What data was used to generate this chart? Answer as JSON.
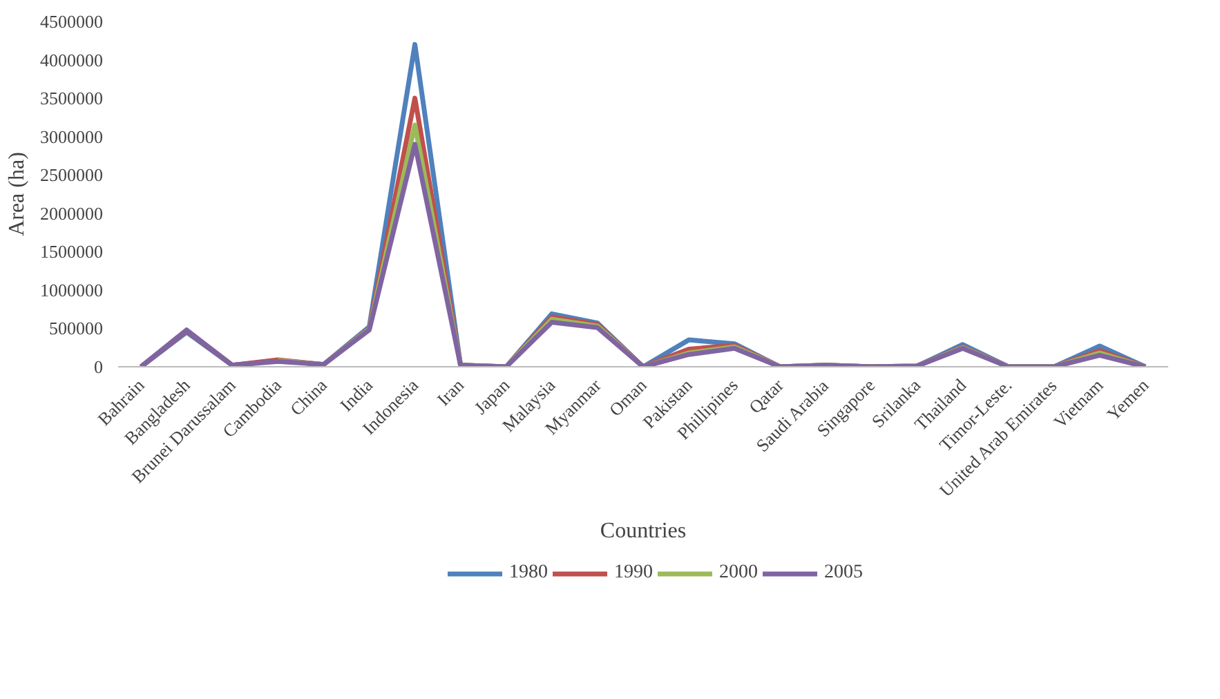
{
  "chart_data": {
    "type": "line",
    "xlabel": "Countries",
    "ylabel": "Area (ha)",
    "categories": [
      "Bahrain",
      "Bangladesh",
      "Brunei Darussalam",
      "Cambodia",
      "China",
      "India",
      "Indonesia",
      "Iran",
      "Japan",
      "Malaysia",
      "Myanmar",
      "Oman",
      "Pakistan",
      "Phillipines",
      "Qatar",
      "Saudi Arabia",
      "Singapore",
      "Srilanka",
      "Thailand",
      "Timor-Leste.",
      "United Arab Emirates",
      "Vietnam",
      "Yemen"
    ],
    "series": [
      {
        "name": "1980",
        "color": "#4f81bd",
        "values": [
          0,
          450000,
          20000,
          80000,
          30000,
          520000,
          4200000,
          20000,
          0,
          690000,
          570000,
          0,
          350000,
          300000,
          0,
          20000,
          0,
          10000,
          290000,
          0,
          0,
          270000,
          0
        ]
      },
      {
        "name": "1990",
        "color": "#c0504d",
        "values": [
          0,
          470000,
          20000,
          90000,
          30000,
          500000,
          3500000,
          20000,
          0,
          650000,
          550000,
          0,
          230000,
          280000,
          0,
          20000,
          0,
          10000,
          260000,
          0,
          0,
          210000,
          0
        ]
      },
      {
        "name": "2000",
        "color": "#9bbb59",
        "values": [
          null,
          null,
          null,
          80000,
          30000,
          490000,
          3150000,
          20000,
          0,
          620000,
          530000,
          0,
          180000,
          260000,
          0,
          20000,
          0,
          10000,
          250000,
          0,
          0,
          180000,
          0
        ]
      },
      {
        "name": "2005",
        "color": "#8064a2",
        "values": [
          0,
          480000,
          20000,
          70000,
          30000,
          480000,
          2900000,
          20000,
          0,
          580000,
          510000,
          0,
          160000,
          240000,
          0,
          20000,
          0,
          10000,
          240000,
          0,
          0,
          150000,
          0
        ]
      }
    ],
    "ylim": [
      0,
      4500000
    ],
    "yticks": [
      0,
      500000,
      1000000,
      1500000,
      2000000,
      2500000,
      3000000,
      3500000,
      4000000,
      4500000
    ],
    "grid": false,
    "legend": "bottom",
    "line_style": "solid",
    "marker": "none"
  }
}
